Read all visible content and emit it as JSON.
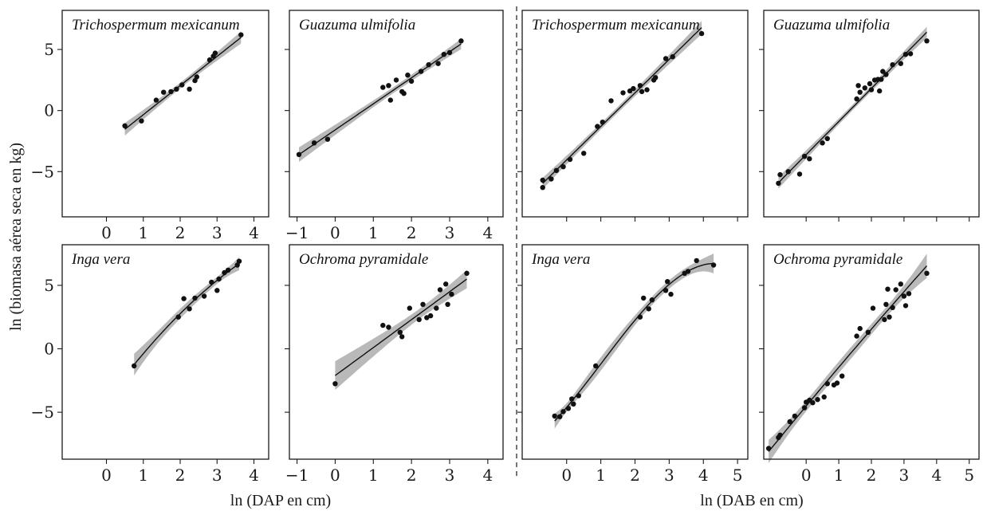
{
  "figure": {
    "ylabel": "ln (biomasa aérea seca en kg)",
    "xlabels": [
      "ln (DAP en cm)",
      "ln (DAB en cm)"
    ]
  },
  "chart_data": [
    {
      "type": "scatter",
      "title": "Trichospermum mexicanum",
      "xlabel": "ln (DAP en cm)",
      "xlim": [
        -1.2,
        4.4
      ],
      "ylim": [
        -8.7,
        8.2
      ],
      "xticks": [
        0,
        1,
        2,
        3,
        4
      ],
      "xticklabels": [
        "0",
        "1",
        "2",
        "3",
        "4"
      ],
      "yticks": [
        5,
        0,
        -5
      ],
      "yticklabels": [
        "5",
        "0",
        "−5"
      ],
      "fit": "linear",
      "points": [
        [
          0.5,
          -1.25
        ],
        [
          0.95,
          -0.85
        ],
        [
          1.35,
          0.85
        ],
        [
          1.55,
          1.5
        ],
        [
          1.75,
          1.55
        ],
        [
          1.9,
          1.75
        ],
        [
          2.05,
          2.1
        ],
        [
          2.25,
          1.75
        ],
        [
          2.4,
          2.45
        ],
        [
          2.45,
          2.75
        ],
        [
          2.8,
          4.15
        ],
        [
          2.9,
          4.45
        ],
        [
          2.95,
          4.7
        ],
        [
          3.65,
          6.2
        ]
      ]
    },
    {
      "type": "scatter",
      "title": "Guazuma ulmifolia",
      "xlabel": "ln (DAP en cm)",
      "xlim": [
        -1.2,
        4.4
      ],
      "ylim": [
        -8.7,
        8.2
      ],
      "xticks": [
        -1,
        0,
        1,
        2,
        3,
        4
      ],
      "xticklabels": [
        "−1",
        "0",
        "1",
        "2",
        "3",
        "4"
      ],
      "yticks": [
        5,
        0,
        -5
      ],
      "yticklabels": [
        "",
        "",
        ""
      ],
      "fit": "linear",
      "points": [
        [
          -0.95,
          -3.6
        ],
        [
          -0.55,
          -2.65
        ],
        [
          -0.2,
          -2.35
        ],
        [
          1.25,
          1.9
        ],
        [
          1.4,
          2.05
        ],
        [
          1.45,
          0.85
        ],
        [
          1.6,
          2.5
        ],
        [
          1.75,
          1.55
        ],
        [
          1.8,
          1.4
        ],
        [
          1.9,
          2.9
        ],
        [
          2.0,
          2.4
        ],
        [
          2.25,
          3.2
        ],
        [
          2.45,
          3.75
        ],
        [
          2.7,
          3.85
        ],
        [
          2.85,
          4.6
        ],
        [
          3.0,
          4.75
        ],
        [
          3.3,
          5.7
        ]
      ]
    },
    {
      "type": "scatter",
      "title": "Trichospermum mexicanum",
      "xlabel": "ln (DAB en cm)",
      "xlim": [
        -1.3,
        5.3
      ],
      "ylim": [
        -8.7,
        8.2
      ],
      "xticks": [
        0,
        1,
        2,
        3,
        4,
        5
      ],
      "xticklabels": [
        "",
        "",
        "",
        "",
        "",
        ""
      ],
      "yticks": [
        5,
        0,
        -5
      ],
      "yticklabels": [
        "",
        "",
        ""
      ],
      "fit": "linear",
      "points": [
        [
          -0.7,
          -5.7
        ],
        [
          -0.7,
          -6.3
        ],
        [
          -0.45,
          -5.6
        ],
        [
          -0.3,
          -4.9
        ],
        [
          -0.1,
          -4.6
        ],
        [
          0.1,
          -4.0
        ],
        [
          0.5,
          -3.5
        ],
        [
          0.9,
          -1.3
        ],
        [
          1.05,
          -0.95
        ],
        [
          1.3,
          0.8
        ],
        [
          1.65,
          1.45
        ],
        [
          1.85,
          1.6
        ],
        [
          1.95,
          1.8
        ],
        [
          2.15,
          2.05
        ],
        [
          2.2,
          1.55
        ],
        [
          2.35,
          1.7
        ],
        [
          2.55,
          2.5
        ],
        [
          2.6,
          2.7
        ],
        [
          2.9,
          4.25
        ],
        [
          3.1,
          4.4
        ],
        [
          3.95,
          6.3
        ]
      ]
    },
    {
      "type": "scatter",
      "title": "Guazuma ulmifolia",
      "xlabel": "ln (DAB en cm)",
      "xlim": [
        -1.3,
        5.3
      ],
      "ylim": [
        -8.7,
        8.2
      ],
      "xticks": [
        0,
        1,
        2,
        3,
        4,
        5
      ],
      "xticklabels": [
        "",
        "",
        "",
        "",
        "",
        ""
      ],
      "yticks": [
        5,
        0,
        -5
      ],
      "yticklabels": [
        "",
        "",
        ""
      ],
      "fit": "linear",
      "points": [
        [
          -0.85,
          -5.95
        ],
        [
          -0.8,
          -5.25
        ],
        [
          -0.55,
          -5.0
        ],
        [
          -0.2,
          -5.2
        ],
        [
          -0.05,
          -3.75
        ],
        [
          0.1,
          -3.95
        ],
        [
          0.5,
          -2.65
        ],
        [
          0.65,
          -2.3
        ],
        [
          1.55,
          0.95
        ],
        [
          1.6,
          2.05
        ],
        [
          1.65,
          1.5
        ],
        [
          1.8,
          1.85
        ],
        [
          1.95,
          2.2
        ],
        [
          2.0,
          1.7
        ],
        [
          2.1,
          2.5
        ],
        [
          2.2,
          2.55
        ],
        [
          2.25,
          1.6
        ],
        [
          2.3,
          2.55
        ],
        [
          2.35,
          3.2
        ],
        [
          2.45,
          2.95
        ],
        [
          2.65,
          3.75
        ],
        [
          2.9,
          3.85
        ],
        [
          3.05,
          4.6
        ],
        [
          3.2,
          4.65
        ],
        [
          3.7,
          5.7
        ]
      ]
    },
    {
      "type": "scatter",
      "title": "Inga vera",
      "xlabel": "ln (DAP en cm)",
      "xlim": [
        -1.2,
        4.4
      ],
      "ylim": [
        -8.7,
        8.2
      ],
      "xticks": [
        0,
        1,
        2,
        3,
        4
      ],
      "xticklabels": [
        "0",
        "1",
        "2",
        "3",
        "4"
      ],
      "yticks": [
        5,
        0,
        -5
      ],
      "yticklabels": [
        "5",
        "0",
        "−5"
      ],
      "fit": "quadratic",
      "points": [
        [
          0.75,
          -1.35
        ],
        [
          1.95,
          2.5
        ],
        [
          2.1,
          3.95
        ],
        [
          2.25,
          3.15
        ],
        [
          2.4,
          4.0
        ],
        [
          2.65,
          4.15
        ],
        [
          2.85,
          5.25
        ],
        [
          3.0,
          4.6
        ],
        [
          3.05,
          5.5
        ],
        [
          3.2,
          6.0
        ],
        [
          3.3,
          6.2
        ],
        [
          3.55,
          6.6
        ],
        [
          3.6,
          6.9
        ]
      ]
    },
    {
      "type": "scatter",
      "title": "Ochroma pyramidale",
      "xlabel": "ln (DAP en cm)",
      "xlim": [
        -1.2,
        4.4
      ],
      "ylim": [
        -8.7,
        8.2
      ],
      "xticks": [
        -1,
        0,
        1,
        2,
        3,
        4
      ],
      "xticklabels": [
        "−1",
        "0",
        "1",
        "2",
        "3",
        "4"
      ],
      "yticks": [
        5,
        0,
        -5
      ],
      "yticklabels": [
        "",
        "",
        ""
      ],
      "fit": "linear",
      "points": [
        [
          0.0,
          -2.75
        ],
        [
          1.25,
          1.85
        ],
        [
          1.4,
          1.7
        ],
        [
          1.7,
          1.3
        ],
        [
          1.75,
          0.95
        ],
        [
          1.95,
          3.2
        ],
        [
          2.2,
          2.3
        ],
        [
          2.3,
          3.5
        ],
        [
          2.4,
          2.45
        ],
        [
          2.5,
          2.6
        ],
        [
          2.65,
          3.2
        ],
        [
          2.75,
          4.65
        ],
        [
          2.9,
          5.1
        ],
        [
          2.95,
          3.5
        ],
        [
          3.05,
          4.3
        ],
        [
          3.45,
          5.95
        ]
      ]
    },
    {
      "type": "scatter",
      "title": "Inga vera",
      "xlabel": "ln (DAB en cm)",
      "xlim": [
        -1.3,
        5.3
      ],
      "ylim": [
        -8.7,
        8.2
      ],
      "xticks": [
        0,
        1,
        2,
        3,
        4,
        5
      ],
      "xticklabels": [
        "0",
        "1",
        "2",
        "3",
        "4",
        "5"
      ],
      "yticks": [
        5,
        0,
        -5
      ],
      "yticklabels": [
        "",
        "",
        ""
      ],
      "fit": "cubic",
      "points": [
        [
          -0.35,
          -5.3
        ],
        [
          -0.2,
          -5.35
        ],
        [
          -0.1,
          -4.95
        ],
        [
          0.05,
          -4.7
        ],
        [
          0.15,
          -3.95
        ],
        [
          0.2,
          -4.35
        ],
        [
          0.35,
          -3.7
        ],
        [
          0.85,
          -1.35
        ],
        [
          2.15,
          2.5
        ],
        [
          2.25,
          4.0
        ],
        [
          2.4,
          3.15
        ],
        [
          2.5,
          3.85
        ],
        [
          2.9,
          4.6
        ],
        [
          2.95,
          5.3
        ],
        [
          3.05,
          4.3
        ],
        [
          3.45,
          5.95
        ],
        [
          3.55,
          6.1
        ],
        [
          3.8,
          6.95
        ],
        [
          4.3,
          6.6
        ]
      ]
    },
    {
      "type": "scatter",
      "title": "Ochroma pyramidale",
      "xlabel": "ln (DAB en cm)",
      "xlim": [
        -1.3,
        5.3
      ],
      "ylim": [
        -8.7,
        8.2
      ],
      "xticks": [
        0,
        1,
        2,
        3,
        4,
        5
      ],
      "xticklabels": [
        "0",
        "1",
        "2",
        "3",
        "4",
        "5"
      ],
      "yticks": [
        5,
        0,
        -5
      ],
      "yticklabels": [
        "",
        "",
        ""
      ],
      "fit": "quadratic",
      "points": [
        [
          -1.15,
          -7.85
        ],
        [
          -0.85,
          -7.0
        ],
        [
          -0.8,
          -6.8
        ],
        [
          -0.5,
          -5.75
        ],
        [
          -0.35,
          -5.3
        ],
        [
          -0.05,
          -4.65
        ],
        [
          0.0,
          -4.2
        ],
        [
          0.1,
          -4.05
        ],
        [
          0.2,
          -4.25
        ],
        [
          0.35,
          -4.0
        ],
        [
          0.55,
          -3.8
        ],
        [
          0.65,
          -2.75
        ],
        [
          0.85,
          -2.85
        ],
        [
          0.95,
          -2.7
        ],
        [
          1.1,
          -2.15
        ],
        [
          1.55,
          1.0
        ],
        [
          1.65,
          1.6
        ],
        [
          1.9,
          1.3
        ],
        [
          2.05,
          3.2
        ],
        [
          2.4,
          2.3
        ],
        [
          2.45,
          3.5
        ],
        [
          2.5,
          4.7
        ],
        [
          2.55,
          2.5
        ],
        [
          2.65,
          3.25
        ],
        [
          2.75,
          4.65
        ],
        [
          2.9,
          5.1
        ],
        [
          3.0,
          4.15
        ],
        [
          3.05,
          3.4
        ],
        [
          3.15,
          4.35
        ],
        [
          3.7,
          5.95
        ]
      ]
    }
  ]
}
